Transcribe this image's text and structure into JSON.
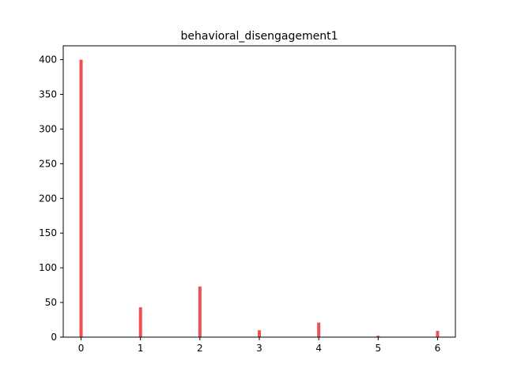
{
  "chart_data": {
    "type": "bar",
    "title": "behavioral_disengagement1",
    "xlabel": "",
    "ylabel": "",
    "x": [
      0,
      1,
      2,
      3,
      4,
      5,
      6
    ],
    "values": [
      400,
      43,
      73,
      10,
      21,
      2,
      9
    ],
    "xlim": [
      -0.3,
      6.3
    ],
    "ylim": [
      0,
      420
    ],
    "xticks": [
      0,
      1,
      2,
      3,
      4,
      5,
      6
    ],
    "xtick_labels": [
      "0",
      "1",
      "2",
      "3",
      "4",
      "5",
      "6"
    ],
    "yticks": [
      0,
      50,
      100,
      150,
      200,
      250,
      300,
      350,
      400
    ],
    "ytick_labels": [
      "0",
      "50",
      "100",
      "150",
      "200",
      "250",
      "300",
      "350",
      "400"
    ],
    "bar_color": "#f05050",
    "grid": false,
    "legend": "none"
  }
}
